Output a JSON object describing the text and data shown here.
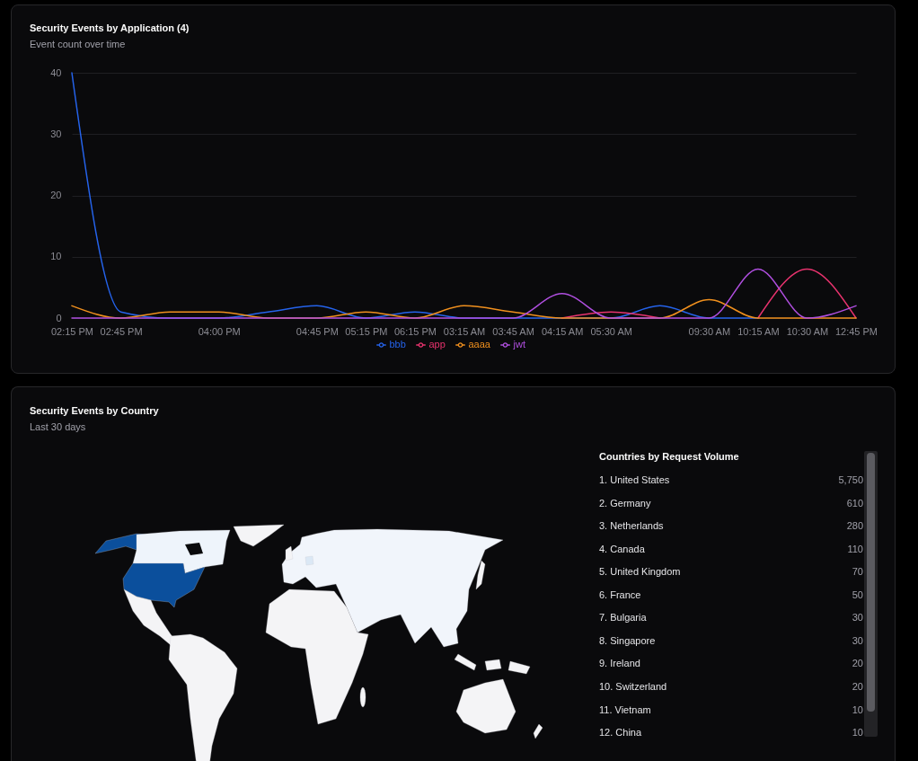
{
  "chart_data": [
    {
      "type": "line",
      "title": "Security Events by Application (4)",
      "subtitle": "Event count over time",
      "categories": [
        "02:15 PM",
        "02:45 PM",
        null,
        "04:00 PM",
        null,
        "04:45 PM",
        "05:15 PM",
        "06:15 PM",
        "03:15 AM",
        "03:45 AM",
        "04:15 AM",
        "05:30 AM",
        null,
        "09:30 AM",
        "10:15 AM",
        "10:30 AM",
        "12:45 PM"
      ],
      "series": [
        {
          "name": "bbb",
          "color": "#2563eb",
          "values": [
            40,
            1,
            0,
            0,
            1,
            2,
            0,
            1,
            0,
            0,
            0,
            0,
            2,
            0,
            0,
            null,
            null
          ]
        },
        {
          "name": "app",
          "color": "#e8336e",
          "values": [
            null,
            null,
            null,
            null,
            null,
            null,
            null,
            null,
            null,
            null,
            0,
            1,
            0,
            null,
            0,
            8,
            0
          ]
        },
        {
          "name": "aaaa",
          "color": "#f0901e",
          "values": [
            2,
            0,
            1,
            1,
            0,
            0,
            1,
            0,
            2,
            1,
            0,
            0,
            0,
            3,
            0,
            0,
            0
          ]
        },
        {
          "name": "jwt",
          "color": "#b04fe0",
          "values": [
            0,
            0,
            0,
            0,
            0,
            0,
            0,
            0,
            0,
            0,
            4,
            0,
            0,
            0,
            8,
            0,
            2
          ]
        }
      ],
      "ylim": [
        0,
        40
      ],
      "yticks": [
        0,
        10,
        20,
        30,
        40
      ],
      "grid": "y",
      "legend": "bottom",
      "line_style": "solid"
    },
    {
      "type": "other",
      "title": "Security Events by Country",
      "subtitle": "Last 30 days",
      "legend_title": "Countries by Request Volume",
      "categories": [
        "1. United States",
        "2. Germany",
        "3. Netherlands",
        "4. Canada",
        "5. United Kingdom",
        "6. France",
        "7. Bulgaria",
        "8. Singapore",
        "9. Ireland",
        "10. Switzerland",
        "11. Vietnam",
        "12. China"
      ],
      "value_labels": [
        "5,750",
        "610",
        "280",
        "110",
        "70",
        "50",
        "30",
        "30",
        "20",
        "20",
        "10",
        "10"
      ]
    }
  ]
}
